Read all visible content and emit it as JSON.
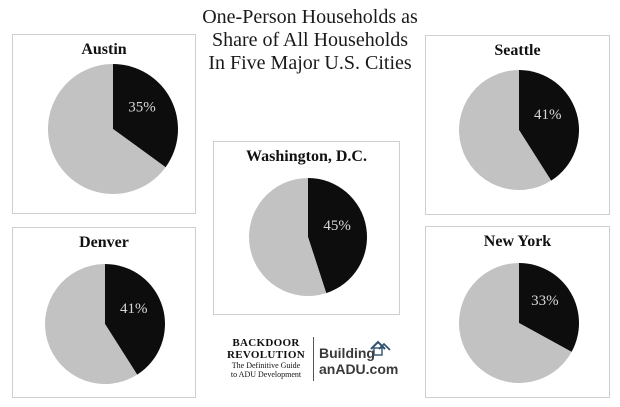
{
  "title_lines": [
    "One-Person Households as",
    "Share of All Households",
    "In Five Major U.S. Cities"
  ],
  "colors": {
    "one_person": "#0d0d0d",
    "other": "#c2c2c2",
    "label": "#d8d8d8"
  },
  "chart_data": [
    {
      "type": "pie",
      "title": "Austin",
      "slices": [
        {
          "value": 35,
          "label": "35%"
        },
        {
          "value": 65,
          "label": ""
        }
      ]
    },
    {
      "type": "pie",
      "title": "Seattle",
      "slices": [
        {
          "value": 41,
          "label": "41%"
        },
        {
          "value": 59,
          "label": ""
        }
      ]
    },
    {
      "type": "pie",
      "title": "Washington, D.C.",
      "slices": [
        {
          "value": 45,
          "label": "45%"
        },
        {
          "value": 55,
          "label": ""
        }
      ]
    },
    {
      "type": "pie",
      "title": "Denver",
      "slices": [
        {
          "value": 41,
          "label": "41%"
        },
        {
          "value": 59,
          "label": ""
        }
      ]
    },
    {
      "type": "pie",
      "title": "New York",
      "slices": [
        {
          "value": 33,
          "label": "33%"
        },
        {
          "value": 67,
          "label": ""
        }
      ]
    }
  ],
  "credits": {
    "backdoor_line1": "BACKDOOR",
    "backdoor_line2": "REVOLUTION",
    "backdoor_line3": "The Definitive Guide",
    "backdoor_line4": "to ADU Development",
    "brand_line1": "Building",
    "brand_line2": "anADU.com",
    "brand_icon": "house-icon"
  }
}
